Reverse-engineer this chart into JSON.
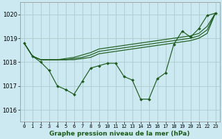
{
  "title": "Graphe pression niveau de la mer (hPa)",
  "xlabel_hours": [
    0,
    1,
    2,
    3,
    4,
    5,
    6,
    7,
    8,
    9,
    10,
    11,
    12,
    13,
    14,
    15,
    16,
    17,
    18,
    19,
    20,
    21,
    22,
    23
  ],
  "ylim": [
    1015.5,
    1020.5
  ],
  "yticks": [
    1016,
    1017,
    1018,
    1019,
    1020
  ],
  "background_color": "#cce8f0",
  "grid_color": "#aacccc",
  "line_color": "#1a5c1a",
  "line_jagged": [
    1018.8,
    1018.25,
    1018.0,
    1017.65,
    1017.0,
    1016.85,
    1016.65,
    1017.2,
    1017.75,
    1017.85,
    1017.95,
    1017.95,
    1017.4,
    1017.25,
    1016.45,
    1016.45,
    1017.3,
    1017.55,
    1018.75,
    1019.3,
    1019.05,
    1019.4,
    1019.95,
    1020.05
  ],
  "line_top": [
    1018.8,
    1018.25,
    1018.1,
    1018.1,
    1018.1,
    1018.15,
    1018.2,
    1018.3,
    1018.4,
    1018.55,
    1018.6,
    1018.65,
    1018.7,
    1018.75,
    1018.8,
    1018.85,
    1018.9,
    1018.95,
    1019.0,
    1019.05,
    1019.1,
    1019.2,
    1019.5,
    1020.05
  ],
  "line_mid": [
    1018.8,
    1018.25,
    1018.1,
    1018.1,
    1018.1,
    1018.1,
    1018.15,
    1018.2,
    1018.3,
    1018.45,
    1018.5,
    1018.55,
    1018.6,
    1018.65,
    1018.7,
    1018.75,
    1018.8,
    1018.85,
    1018.9,
    1018.95,
    1019.0,
    1019.1,
    1019.35,
    1020.05
  ],
  "line_low": [
    1018.8,
    1018.25,
    1018.1,
    1018.1,
    1018.1,
    1018.1,
    1018.1,
    1018.15,
    1018.2,
    1018.35,
    1018.4,
    1018.45,
    1018.5,
    1018.55,
    1018.6,
    1018.65,
    1018.7,
    1018.75,
    1018.8,
    1018.85,
    1018.9,
    1019.0,
    1019.2,
    1020.05
  ],
  "xtick_labels": [
    "0",
    "1",
    "2",
    "3",
    "4",
    "5",
    "6",
    "7",
    "8",
    "9",
    "10",
    "11",
    "12",
    "13",
    "14",
    "15",
    "16",
    "17",
    "18",
    "19",
    "20",
    "21",
    "22",
    "23"
  ]
}
